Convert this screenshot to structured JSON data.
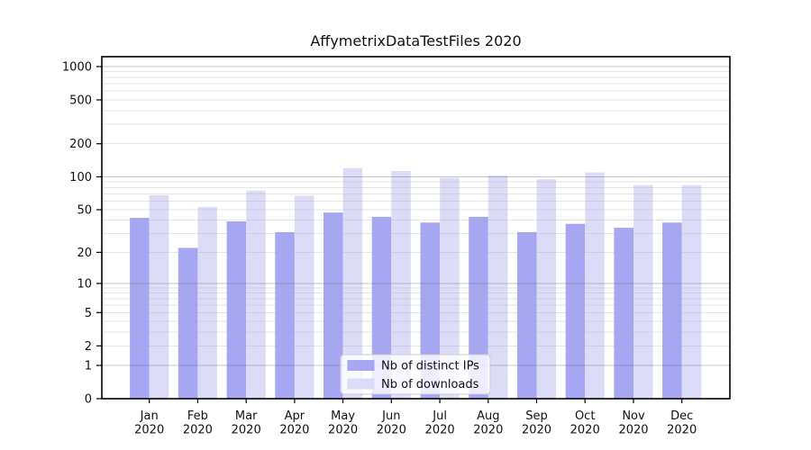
{
  "page": {
    "background": "#ffffff"
  },
  "chart": {
    "title": "AffymetrixDataTestFiles 2020",
    "legend": [
      {
        "label": "Nb of distinct IPs",
        "color": "#a6a6f2"
      },
      {
        "label": "Nb of downloads",
        "color": "#dcdcf8"
      }
    ]
  },
  "chart_data": {
    "type": "bar",
    "title": "AffymetrixDataTestFiles 2020",
    "categories": [
      "Jan 2020",
      "Feb 2020",
      "Mar 2020",
      "Apr 2020",
      "May 2020",
      "Jun 2020",
      "Jul 2020",
      "Aug 2020",
      "Sep 2020",
      "Oct 2020",
      "Nov 2020",
      "Dec 2020"
    ],
    "months": [
      "Jan",
      "Feb",
      "Mar",
      "Apr",
      "May",
      "Jun",
      "Jul",
      "Aug",
      "Sep",
      "Oct",
      "Nov",
      "Dec"
    ],
    "year": "2020",
    "series": [
      {
        "name": "Nb of distinct IPs",
        "color": "#a6a6f2",
        "values": [
          42,
          22,
          39,
          31,
          47,
          43,
          38,
          43,
          31,
          37,
          34,
          38
        ]
      },
      {
        "name": "Nb of downloads",
        "color": "#dcdcf8",
        "values": [
          68,
          53,
          75,
          67,
          120,
          113,
          98,
          103,
          95,
          110,
          84,
          84
        ]
      }
    ],
    "xlabel": "",
    "ylabel": "",
    "y_scale": "symlog (log1p), zero shown at axis",
    "y_ticks": [
      0,
      1,
      2,
      5,
      10,
      20,
      50,
      100,
      200,
      500,
      1000
    ],
    "ylim": [
      0,
      1230
    ],
    "grid": "horizontal major (powers of 10) + minor log subdivisions",
    "legend_position": "inside bottom-center"
  }
}
